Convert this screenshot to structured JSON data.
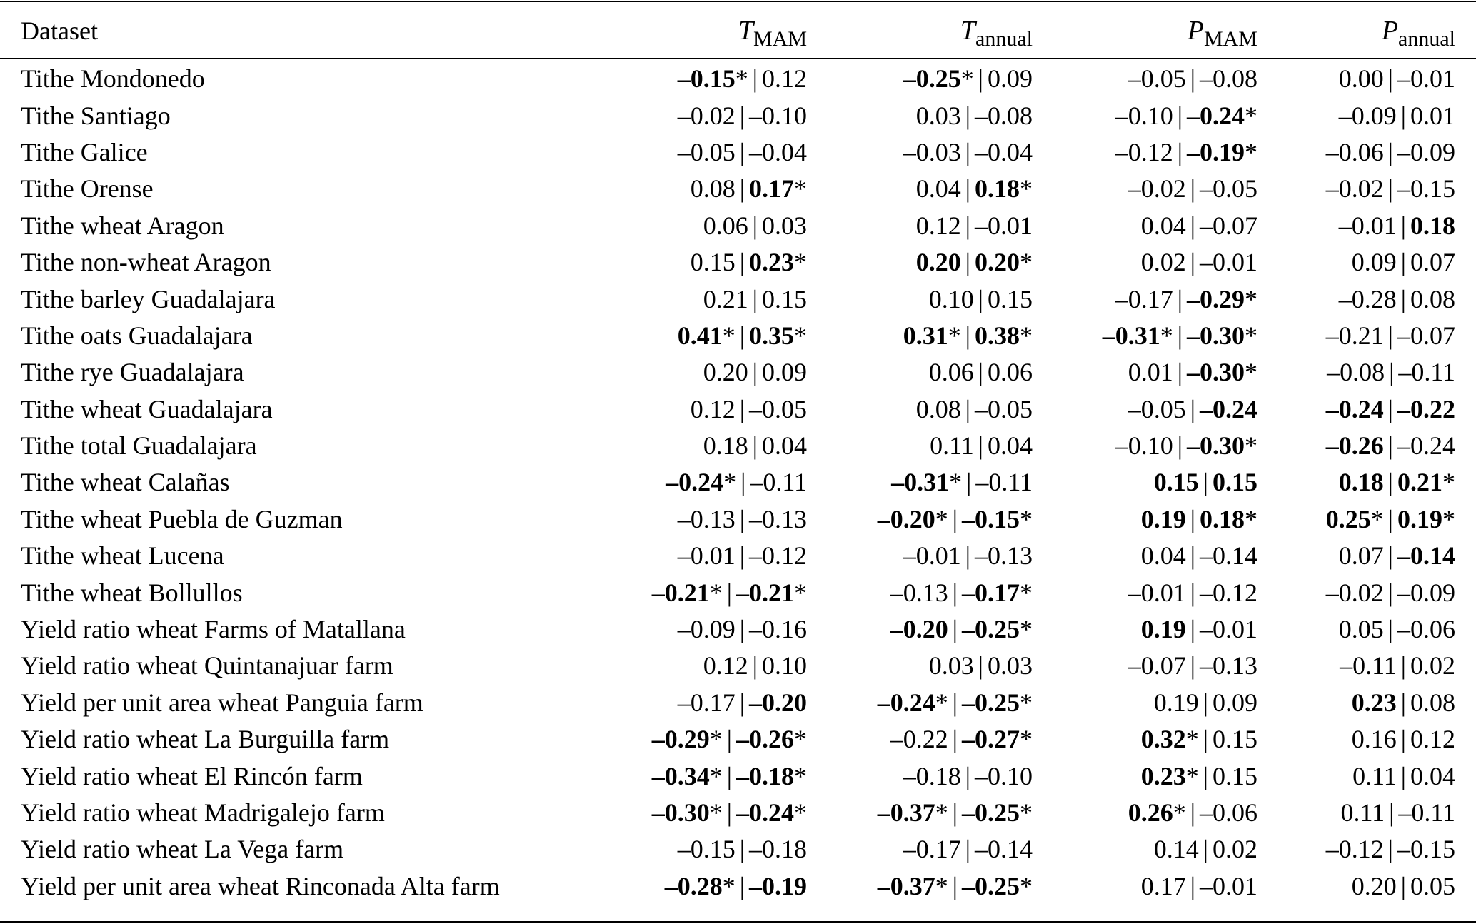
{
  "table": {
    "headers": [
      {
        "label": "Dataset"
      },
      {
        "sym": "T",
        "sub": "MAM"
      },
      {
        "sym": "T",
        "sub": "annual"
      },
      {
        "sym": "P",
        "sub": "MAM"
      },
      {
        "sym": "P",
        "sub": "annual"
      }
    ],
    "separator": "|",
    "rows": [
      {
        "name": "Tithe Mondonedo",
        "cells": [
          [
            {
              "v": "–0.15",
              "b": 1,
              "s": "*"
            },
            {
              "v": "0.12"
            }
          ],
          [
            {
              "v": "–0.25",
              "b": 1,
              "s": "*"
            },
            {
              "v": "0.09"
            }
          ],
          [
            {
              "v": "–0.05"
            },
            {
              "v": "–0.08"
            }
          ],
          [
            {
              "v": "0.00"
            },
            {
              "v": "–0.01"
            }
          ]
        ]
      },
      {
        "name": "Tithe Santiago",
        "cells": [
          [
            {
              "v": "–0.02"
            },
            {
              "v": "–0.10"
            }
          ],
          [
            {
              "v": "0.03"
            },
            {
              "v": "–0.08"
            }
          ],
          [
            {
              "v": "–0.10"
            },
            {
              "v": "–0.24",
              "b": 1,
              "s": "*"
            }
          ],
          [
            {
              "v": "–0.09"
            },
            {
              "v": "0.01"
            }
          ]
        ]
      },
      {
        "name": "Tithe Galice",
        "cells": [
          [
            {
              "v": "–0.05"
            },
            {
              "v": "–0.04"
            }
          ],
          [
            {
              "v": "–0.03"
            },
            {
              "v": "–0.04"
            }
          ],
          [
            {
              "v": "–0.12"
            },
            {
              "v": "–0.19",
              "b": 1,
              "s": "*"
            }
          ],
          [
            {
              "v": "–0.06"
            },
            {
              "v": "–0.09"
            }
          ]
        ]
      },
      {
        "name": "Tithe Orense",
        "cells": [
          [
            {
              "v": "0.08"
            },
            {
              "v": "0.17",
              "b": 1,
              "s": "*"
            }
          ],
          [
            {
              "v": "0.04"
            },
            {
              "v": "0.18",
              "b": 1,
              "s": "*"
            }
          ],
          [
            {
              "v": "–0.02"
            },
            {
              "v": "–0.05"
            }
          ],
          [
            {
              "v": "–0.02"
            },
            {
              "v": "–0.15"
            }
          ]
        ]
      },
      {
        "name": "Tithe wheat Aragon",
        "cells": [
          [
            {
              "v": "0.06"
            },
            {
              "v": "0.03"
            }
          ],
          [
            {
              "v": "0.12"
            },
            {
              "v": "–0.01"
            }
          ],
          [
            {
              "v": "0.04"
            },
            {
              "v": "–0.07"
            }
          ],
          [
            {
              "v": "–0.01"
            },
            {
              "v": "0.18",
              "b": 1
            }
          ]
        ]
      },
      {
        "name": "Tithe non-wheat Aragon",
        "cells": [
          [
            {
              "v": "0.15"
            },
            {
              "v": "0.23",
              "b": 1,
              "s": "*"
            }
          ],
          [
            {
              "v": "0.20",
              "b": 1
            },
            {
              "v": "0.20",
              "b": 1,
              "s": "*"
            }
          ],
          [
            {
              "v": "0.02"
            },
            {
              "v": "–0.01"
            }
          ],
          [
            {
              "v": "0.09"
            },
            {
              "v": "0.07"
            }
          ]
        ]
      },
      {
        "name": "Tithe barley Guadalajara",
        "cells": [
          [
            {
              "v": "0.21"
            },
            {
              "v": "0.15"
            }
          ],
          [
            {
              "v": "0.10"
            },
            {
              "v": "0.15"
            }
          ],
          [
            {
              "v": "–0.17"
            },
            {
              "v": "–0.29",
              "b": 1,
              "s": "*"
            }
          ],
          [
            {
              "v": "–0.28"
            },
            {
              "v": "0.08"
            }
          ]
        ]
      },
      {
        "name": "Tithe oats Guadalajara",
        "cells": [
          [
            {
              "v": "0.41",
              "b": 1,
              "s": "*"
            },
            {
              "v": "0.35",
              "b": 1,
              "s": "*"
            }
          ],
          [
            {
              "v": "0.31",
              "b": 1,
              "s": "*"
            },
            {
              "v": "0.38",
              "b": 1,
              "s": "*"
            }
          ],
          [
            {
              "v": "–0.31",
              "b": 1,
              "s": "*"
            },
            {
              "v": "–0.30",
              "b": 1,
              "s": "*"
            }
          ],
          [
            {
              "v": "–0.21"
            },
            {
              "v": "–0.07"
            }
          ]
        ]
      },
      {
        "name": "Tithe rye Guadalajara",
        "cells": [
          [
            {
              "v": "0.20"
            },
            {
              "v": "0.09"
            }
          ],
          [
            {
              "v": "0.06"
            },
            {
              "v": "0.06"
            }
          ],
          [
            {
              "v": "0.01"
            },
            {
              "v": "–0.30",
              "b": 1,
              "s": "*"
            }
          ],
          [
            {
              "v": "–0.08"
            },
            {
              "v": "–0.11"
            }
          ]
        ]
      },
      {
        "name": "Tithe wheat Guadalajara",
        "cells": [
          [
            {
              "v": "0.12"
            },
            {
              "v": "–0.05"
            }
          ],
          [
            {
              "v": "0.08"
            },
            {
              "v": "–0.05"
            }
          ],
          [
            {
              "v": "–0.05"
            },
            {
              "v": "–0.24",
              "b": 1
            }
          ],
          [
            {
              "v": "–0.24",
              "b": 1
            },
            {
              "v": "–0.22",
              "b": 1
            }
          ]
        ]
      },
      {
        "name": "Tithe total Guadalajara",
        "cells": [
          [
            {
              "v": "0.18"
            },
            {
              "v": "0.04"
            }
          ],
          [
            {
              "v": "0.11"
            },
            {
              "v": "0.04"
            }
          ],
          [
            {
              "v": "–0.10"
            },
            {
              "v": "–0.30",
              "b": 1,
              "s": "*"
            }
          ],
          [
            {
              "v": "–0.26",
              "b": 1
            },
            {
              "v": "–0.24"
            }
          ]
        ]
      },
      {
        "name": "Tithe wheat Calañas",
        "cells": [
          [
            {
              "v": "–0.24",
              "b": 1,
              "s": "*"
            },
            {
              "v": "–0.11"
            }
          ],
          [
            {
              "v": "–0.31",
              "b": 1,
              "s": "*"
            },
            {
              "v": "–0.11"
            }
          ],
          [
            {
              "v": "0.15",
              "b": 1
            },
            {
              "v": "0.15",
              "b": 1
            }
          ],
          [
            {
              "v": "0.18",
              "b": 1
            },
            {
              "v": "0.21",
              "b": 1,
              "s": "*"
            }
          ]
        ]
      },
      {
        "name": "Tithe wheat Puebla de Guzman",
        "cells": [
          [
            {
              "v": "–0.13"
            },
            {
              "v": "–0.13"
            }
          ],
          [
            {
              "v": "–0.20",
              "b": 1,
              "s": "*"
            },
            {
              "v": "–0.15",
              "b": 1,
              "s": "*"
            }
          ],
          [
            {
              "v": "0.19",
              "b": 1
            },
            {
              "v": "0.18",
              "b": 1,
              "s": "*"
            }
          ],
          [
            {
              "v": "0.25",
              "b": 1,
              "s": "*"
            },
            {
              "v": "0.19",
              "b": 1,
              "s": "*"
            }
          ]
        ]
      },
      {
        "name": "Tithe wheat Lucena",
        "cells": [
          [
            {
              "v": "–0.01"
            },
            {
              "v": "–0.12"
            }
          ],
          [
            {
              "v": "–0.01"
            },
            {
              "v": "–0.13"
            }
          ],
          [
            {
              "v": "0.04"
            },
            {
              "v": "–0.14"
            }
          ],
          [
            {
              "v": "0.07"
            },
            {
              "v": "–0.14",
              "b": 1
            }
          ]
        ]
      },
      {
        "name": "Tithe wheat Bollullos",
        "cells": [
          [
            {
              "v": "–0.21",
              "b": 1,
              "s": "*"
            },
            {
              "v": "–0.21",
              "b": 1,
              "s": "*"
            }
          ],
          [
            {
              "v": "–0.13"
            },
            {
              "v": "–0.17",
              "b": 1,
              "s": "*"
            }
          ],
          [
            {
              "v": "–0.01"
            },
            {
              "v": "–0.12"
            }
          ],
          [
            {
              "v": "–0.02"
            },
            {
              "v": "–0.09"
            }
          ]
        ]
      },
      {
        "name": "Yield ratio wheat Farms of Matallana",
        "cells": [
          [
            {
              "v": "–0.09"
            },
            {
              "v": "–0.16"
            }
          ],
          [
            {
              "v": "–0.20",
              "b": 1
            },
            {
              "v": "–0.25",
              "b": 1,
              "s": "*"
            }
          ],
          [
            {
              "v": "0.19",
              "b": 1
            },
            {
              "v": "–0.01"
            }
          ],
          [
            {
              "v": "0.05"
            },
            {
              "v": "–0.06"
            }
          ]
        ]
      },
      {
        "name": "Yield ratio wheat Quintanajuar farm",
        "cells": [
          [
            {
              "v": "0.12"
            },
            {
              "v": "0.10"
            }
          ],
          [
            {
              "v": "0.03"
            },
            {
              "v": "0.03"
            }
          ],
          [
            {
              "v": "–0.07"
            },
            {
              "v": "–0.13"
            }
          ],
          [
            {
              "v": "–0.11"
            },
            {
              "v": "0.02"
            }
          ]
        ]
      },
      {
        "name": "Yield per unit area wheat Panguia farm",
        "cells": [
          [
            {
              "v": "–0.17"
            },
            {
              "v": "–0.20",
              "b": 1
            }
          ],
          [
            {
              "v": "–0.24",
              "b": 1,
              "s": "*"
            },
            {
              "v": "–0.25",
              "b": 1,
              "s": "*"
            }
          ],
          [
            {
              "v": "0.19"
            },
            {
              "v": "0.09"
            }
          ],
          [
            {
              "v": "0.23",
              "b": 1
            },
            {
              "v": "0.08"
            }
          ]
        ]
      },
      {
        "name": "Yield ratio wheat La Burguilla farm",
        "cells": [
          [
            {
              "v": "–0.29",
              "b": 1,
              "s": "*"
            },
            {
              "v": "–0.26",
              "b": 1,
              "s": "*"
            }
          ],
          [
            {
              "v": "–0.22"
            },
            {
              "v": "–0.27",
              "b": 1,
              "s": "*"
            }
          ],
          [
            {
              "v": "0.32",
              "b": 1,
              "s": "*"
            },
            {
              "v": "0.15"
            }
          ],
          [
            {
              "v": "0.16"
            },
            {
              "v": "0.12"
            }
          ]
        ]
      },
      {
        "name": "Yield ratio wheat El Rincón farm",
        "cells": [
          [
            {
              "v": "–0.34",
              "b": 1,
              "s": "*"
            },
            {
              "v": "–0.18",
              "b": 1,
              "s": "*"
            }
          ],
          [
            {
              "v": "–0.18"
            },
            {
              "v": "–0.10"
            }
          ],
          [
            {
              "v": "0.23",
              "b": 1,
              "s": "*"
            },
            {
              "v": "0.15"
            }
          ],
          [
            {
              "v": "0.11"
            },
            {
              "v": "0.04"
            }
          ]
        ]
      },
      {
        "name": "Yield ratio wheat Madrigalejo farm",
        "cells": [
          [
            {
              "v": "–0.30",
              "b": 1,
              "s": "*"
            },
            {
              "v": "–0.24",
              "b": 1,
              "s": "*"
            }
          ],
          [
            {
              "v": "–0.37",
              "b": 1,
              "s": "*"
            },
            {
              "v": "–0.25",
              "b": 1,
              "s": "*"
            }
          ],
          [
            {
              "v": "0.26",
              "b": 1,
              "s": "*"
            },
            {
              "v": "–0.06"
            }
          ],
          [
            {
              "v": "0.11"
            },
            {
              "v": "–0.11"
            }
          ]
        ]
      },
      {
        "name": "Yield ratio wheat La Vega farm",
        "cells": [
          [
            {
              "v": "–0.15"
            },
            {
              "v": "–0.18"
            }
          ],
          [
            {
              "v": "–0.17"
            },
            {
              "v": "–0.14"
            }
          ],
          [
            {
              "v": "0.14"
            },
            {
              "v": "0.02"
            }
          ],
          [
            {
              "v": "–0.12"
            },
            {
              "v": "–0.15"
            }
          ]
        ]
      },
      {
        "name": "Yield per unit area wheat Rinconada Alta farm",
        "cells": [
          [
            {
              "v": "–0.28",
              "b": 1,
              "s": "*"
            },
            {
              "v": "–0.19",
              "b": 1
            }
          ],
          [
            {
              "v": "–0.37",
              "b": 1,
              "s": "*"
            },
            {
              "v": "–0.25",
              "b": 1,
              "s": "*"
            }
          ],
          [
            {
              "v": "0.17"
            },
            {
              "v": "–0.01"
            }
          ],
          [
            {
              "v": "0.20"
            },
            {
              "v": "0.05"
            }
          ]
        ]
      }
    ]
  }
}
